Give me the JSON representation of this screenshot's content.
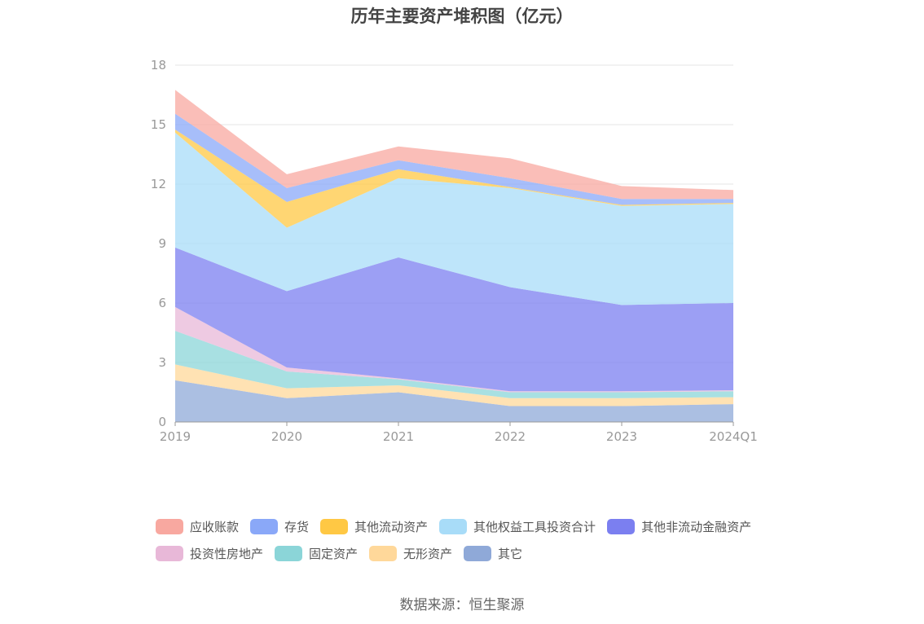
{
  "title": "历年主要资产堆积图（亿元）",
  "source": "数据来源：恒生聚源",
  "chart_data": {
    "type": "area",
    "stacked": true,
    "title": "历年主要资产堆积图（亿元）",
    "xlabel": "",
    "ylabel": "",
    "categories": [
      "2019",
      "2020",
      "2021",
      "2022",
      "2023",
      "2024Q1"
    ],
    "ylim": [
      0,
      18
    ],
    "yticks": [
      0,
      3,
      6,
      9,
      12,
      15,
      18
    ],
    "grid": true,
    "legend_position": "bottom",
    "series": [
      {
        "name": "其它",
        "color": "#8fa9d8",
        "values": [
          2.1,
          1.2,
          1.5,
          0.8,
          0.8,
          0.9
        ]
      },
      {
        "name": "无形资产",
        "color": "#ffd89a",
        "values": [
          0.8,
          0.5,
          0.35,
          0.4,
          0.4,
          0.35
        ]
      },
      {
        "name": "固定资产",
        "color": "#8bd5d8",
        "values": [
          1.7,
          0.85,
          0.3,
          0.3,
          0.3,
          0.3
        ]
      },
      {
        "name": "投资性房地产",
        "color": "#e8b8d8",
        "values": [
          1.2,
          0.2,
          0.05,
          0.05,
          0.05,
          0.05
        ]
      },
      {
        "name": "其他非流动金融资产",
        "color": "#7b7ff0",
        "values": [
          3.0,
          3.85,
          6.1,
          5.25,
          4.35,
          4.4
        ]
      },
      {
        "name": "其他权益工具投资合计",
        "color": "#a8dcf8",
        "values": [
          5.8,
          3.2,
          4.0,
          5.0,
          5.0,
          5.0
        ]
      },
      {
        "name": "其他流动资产",
        "color": "#ffc844",
        "values": [
          0.15,
          1.3,
          0.45,
          0.05,
          0.05,
          0.05
        ]
      },
      {
        "name": "存货",
        "color": "#8aa8f8",
        "values": [
          0.8,
          0.7,
          0.45,
          0.45,
          0.3,
          0.2
        ]
      },
      {
        "name": "应收账款",
        "color": "#f8a8a0",
        "values": [
          1.2,
          0.7,
          0.7,
          1.0,
          0.65,
          0.45
        ]
      }
    ]
  },
  "legend": {
    "rows": [
      [
        "应收账款",
        "存货",
        "其他流动资产",
        "其他权益工具投资合计",
        "其他非流动金融资产"
      ],
      [
        "投资性房地产",
        "固定资产",
        "无形资产",
        "其它"
      ]
    ]
  }
}
